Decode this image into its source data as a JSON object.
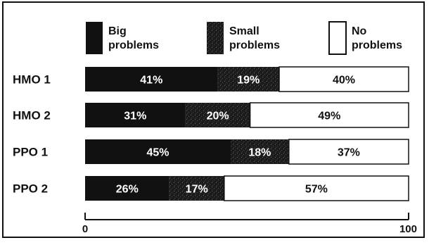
{
  "chart_data": {
    "type": "bar",
    "orientation": "horizontal",
    "stacked": true,
    "categories": [
      "HMO 1",
      "HMO 2",
      "PPO 1",
      "PPO 2"
    ],
    "series": [
      {
        "name": "Big problems",
        "values": [
          41,
          31,
          45,
          26
        ],
        "color": "#111111",
        "label_color": "#ffffff"
      },
      {
        "name": "Small problems",
        "values": [
          19,
          20,
          18,
          17
        ],
        "color": "#1a1a1a",
        "label_color": "#ffffff"
      },
      {
        "name": "No problems",
        "values": [
          40,
          49,
          37,
          57
        ],
        "color": "#ffffff",
        "label_color": "#111111"
      }
    ],
    "value_labels": [
      [
        "41%",
        "19%",
        "40%"
      ],
      [
        "31%",
        "20%",
        "49%"
      ],
      [
        "45%",
        "18%",
        "37%"
      ],
      [
        "26%",
        "17%",
        "57%"
      ]
    ],
    "legend": {
      "position": "top",
      "entries": [
        {
          "line1": "Big",
          "line2": "problems"
        },
        {
          "line1": "Small",
          "line2": "problems"
        },
        {
          "line1": "No",
          "line2": "problems"
        }
      ]
    },
    "xlim": [
      0,
      100
    ],
    "tick_labels": [
      "0",
      "100"
    ],
    "grid": false
  }
}
